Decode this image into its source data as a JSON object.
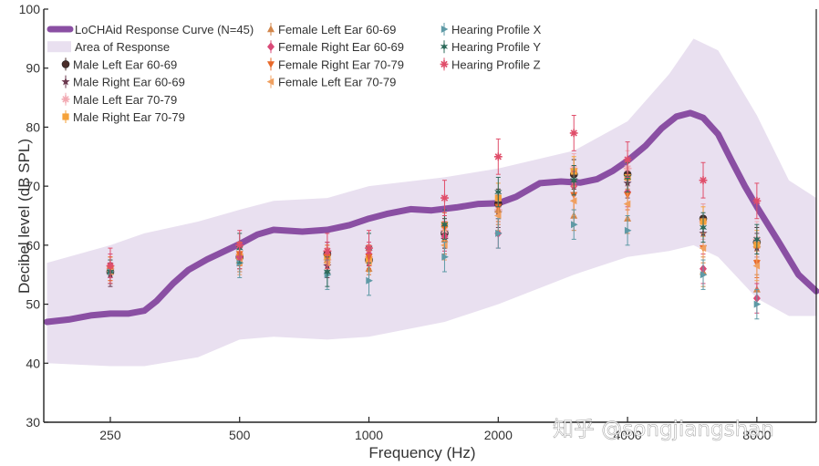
{
  "chart_data": {
    "type": "line",
    "xlabel": "Frequency (Hz)",
    "ylabel": "Decibel level (dB SPL)",
    "ylim": [
      30,
      100
    ],
    "y_ticks": [
      30,
      40,
      50,
      60,
      70,
      80,
      90,
      100
    ],
    "x_scale": "log",
    "xlim": [
      175,
      11000
    ],
    "x_ticks": [
      {
        "value": 250,
        "label": "250"
      },
      {
        "value": 500,
        "label": "500"
      },
      {
        "value": 1000,
        "label": "1000"
      },
      {
        "value": 2000,
        "label": "2000"
      },
      {
        "value": 4000,
        "label": "4000"
      },
      {
        "value": 8000,
        "label": "8000"
      }
    ],
    "grid": false,
    "legend_position": "top-left",
    "colors": {
      "curve": "#8a4fa3",
      "area": "#e9e0f0"
    },
    "curve": {
      "name": "LoCHAid Response Curve (N=45)",
      "x": [
        178,
        200,
        225,
        250,
        275,
        300,
        320,
        350,
        380,
        420,
        500,
        550,
        600,
        700,
        800,
        900,
        1000,
        1100,
        1250,
        1400,
        1600,
        1800,
        2000,
        2200,
        2500,
        2800,
        3100,
        3400,
        3700,
        4000,
        4400,
        4800,
        5200,
        5600,
        6000,
        6500,
        7000,
        7500,
        8000,
        9000,
        10000,
        11000
      ],
      "y": [
        47,
        47.4,
        48.1,
        48.4,
        48.4,
        48.9,
        50.5,
        53.5,
        55.8,
        57.6,
        60.2,
        61.8,
        62.6,
        62.3,
        62.6,
        63.4,
        64.5,
        65.3,
        66.1,
        65.9,
        66.4,
        67.0,
        67.1,
        68.2,
        70.5,
        70.8,
        70.6,
        71.2,
        72.6,
        74.3,
        76.8,
        79.8,
        81.8,
        82.4,
        81.6,
        78.8,
        74.2,
        70.0,
        66.5,
        60.5,
        55.0,
        52.2
      ]
    },
    "area": {
      "name": "Area of Response",
      "x": [
        178,
        250,
        300,
        400,
        500,
        600,
        800,
        1000,
        1500,
        2000,
        3000,
        4000,
        5000,
        5700,
        6500,
        8000,
        9500,
        11000
      ],
      "upper": [
        57,
        60,
        62,
        64,
        66,
        67.5,
        68,
        70,
        71.5,
        73,
        76,
        81,
        89,
        95,
        93,
        82,
        71,
        68
      ],
      "lower": [
        40,
        39.5,
        39.5,
        41,
        44,
        44.5,
        44,
        44.5,
        47,
        50,
        55,
        58,
        59,
        60,
        58,
        51,
        48,
        48
      ]
    },
    "series": [
      {
        "name": "Male Left Ear 60-69",
        "color": "#4a2e2a",
        "marker": "circle",
        "x": [
          250,
          500,
          800,
          1000,
          1500,
          2000,
          3000,
          4000,
          6000,
          8000
        ],
        "y": [
          55.5,
          58,
          58.5,
          57.5,
          62,
          67,
          72,
          72,
          64.5,
          60.5
        ],
        "err": [
          2,
          2,
          2,
          2,
          2.5,
          2.5,
          2.5,
          2.5,
          2.5,
          2.5
        ]
      },
      {
        "name": "Male Right Ear 60-69",
        "color": "#6b3a4f",
        "marker": "star",
        "x": [
          250,
          500,
          800,
          1000,
          1500,
          2000,
          3000,
          4000,
          6000,
          8000
        ],
        "y": [
          55,
          57.5,
          56.5,
          57,
          61,
          65.5,
          71,
          70.5,
          62,
          59.5
        ],
        "err": [
          2,
          2,
          2,
          2,
          2.5,
          2.5,
          2.5,
          2.5,
          2.5,
          2.5
        ]
      },
      {
        "name": "Male Left Ear 70-79",
        "color": "#f2a9b2",
        "marker": "asterisk",
        "x": [
          250,
          500,
          800,
          1000,
          1500,
          2000,
          3000,
          4000,
          6000,
          8000
        ],
        "y": [
          56,
          58.5,
          57.5,
          58,
          62.5,
          66,
          73,
          73,
          64,
          61
        ],
        "err": [
          2,
          2,
          2,
          2,
          2.5,
          2.5,
          2.5,
          3,
          3,
          3
        ]
      },
      {
        "name": "Male Right Ear 70-79",
        "color": "#f5a23a",
        "marker": "square",
        "x": [
          250,
          500,
          800,
          1000,
          1500,
          2000,
          3000,
          4000,
          6000,
          8000
        ],
        "y": [
          56,
          58,
          58,
          57.5,
          63.5,
          68,
          72.5,
          71.5,
          64,
          60
        ],
        "err": [
          2,
          2,
          2,
          2,
          2.5,
          2.5,
          2.5,
          2.5,
          2.5,
          2.5
        ]
      },
      {
        "name": "Female Left Ear 60-69",
        "color": "#d2864b",
        "marker": "triangle-up",
        "x": [
          250,
          500,
          800,
          1000,
          1500,
          2000,
          3000,
          4000,
          6000,
          8000
        ],
        "y": [
          55.5,
          57.5,
          57.5,
          56,
          61,
          66,
          65,
          64.5,
          55.5,
          52.5
        ],
        "err": [
          2,
          2,
          2,
          2,
          2.5,
          2.5,
          2.5,
          2.5,
          2.5,
          2.5
        ]
      },
      {
        "name": "Female Right Ear 60-69",
        "color": "#d94a78",
        "marker": "diamond",
        "x": [
          250,
          500,
          800,
          1000,
          1500,
          2000,
          3000,
          4000,
          6000,
          8000
        ],
        "y": [
          56.5,
          58,
          58.5,
          58.5,
          61.5,
          62,
          70,
          69,
          56,
          51
        ],
        "err": [
          2,
          2,
          2,
          2,
          2.5,
          2.5,
          2.5,
          2.5,
          2.5,
          2.5
        ]
      },
      {
        "name": "Female Right Ear 70-79",
        "color": "#e8692a",
        "marker": "triangle-down",
        "x": [
          250,
          500,
          800,
          1000,
          1500,
          2000,
          3000,
          4000,
          6000,
          8000
        ],
        "y": [
          56,
          58.5,
          58,
          58,
          63,
          66.5,
          68.5,
          68.5,
          59.5,
          57
        ],
        "err": [
          2,
          2,
          2,
          2,
          2.5,
          2.5,
          2.5,
          2.5,
          2.5,
          2.5
        ]
      },
      {
        "name": "Female Left Ear 70-79",
        "color": "#f0a060",
        "marker": "triangle-left",
        "x": [
          250,
          500,
          800,
          1000,
          1500,
          2000,
          3000,
          4000,
          6000,
          8000
        ],
        "y": [
          55.5,
          57,
          57,
          57,
          60,
          65,
          67.5,
          67,
          59.5,
          56.5
        ],
        "err": [
          2,
          2,
          2,
          2,
          2.5,
          2.5,
          2.5,
          2.5,
          2.5,
          2.5
        ]
      },
      {
        "name": "Hearing Profile X",
        "color": "#5f9aa6",
        "marker": "triangle-right",
        "x": [
          250,
          500,
          800,
          1000,
          1500,
          2000,
          3000,
          4000,
          6000,
          8000
        ],
        "y": [
          55.5,
          57,
          55,
          54,
          58,
          62,
          63.5,
          62.5,
          55,
          50
        ],
        "err": [
          2,
          2.5,
          2.5,
          2.5,
          2.5,
          2.5,
          2.5,
          2.5,
          2.5,
          2.5
        ]
      },
      {
        "name": "Hearing Profile Y",
        "color": "#2e6b5b",
        "marker": "star6",
        "x": [
          250,
          500,
          800,
          1000,
          1500,
          2000,
          3000,
          4000,
          6000,
          8000
        ],
        "y": [
          55.5,
          59.5,
          55.5,
          59.5,
          63.5,
          69,
          71,
          71.5,
          63,
          61
        ],
        "err": [
          2,
          2.5,
          2.5,
          2.5,
          2.5,
          2.5,
          2.5,
          2.5,
          2.5,
          2.5
        ]
      },
      {
        "name": "Hearing Profile Z",
        "color": "#e04e6a",
        "marker": "asterisk",
        "x": [
          250,
          500,
          800,
          1000,
          1500,
          2000,
          3000,
          4000,
          6000,
          8000
        ],
        "y": [
          56.5,
          60,
          59,
          59.5,
          68,
          75,
          79,
          74.5,
          71,
          67.5
        ],
        "err": [
          3,
          2.5,
          3,
          3,
          3,
          3,
          3,
          3,
          3,
          3
        ]
      }
    ]
  },
  "watermark": "知乎 @songjiangshan"
}
